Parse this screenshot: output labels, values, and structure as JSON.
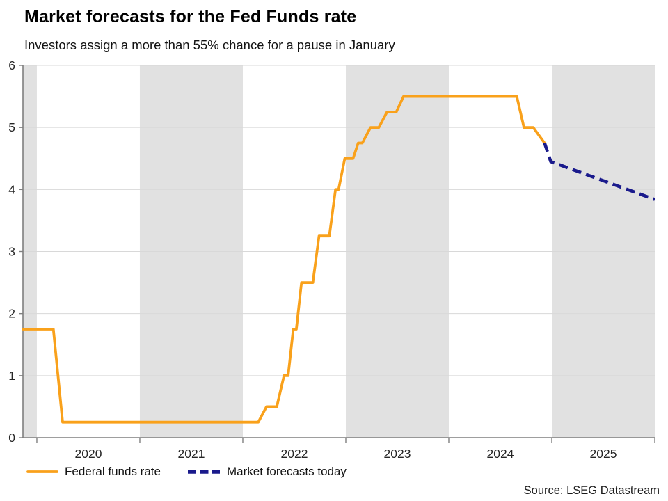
{
  "chart_data": {
    "type": "line",
    "title": "Market forecasts for the Fed Funds rate",
    "subtitle": "Investors assign a more than 55% chance for a pause in January",
    "source": "Source: LSEG Datastream",
    "grid": true,
    "legend_position": "bottom-left",
    "x_axis": {
      "range": [
        2019.865,
        2026.0
      ],
      "tick_positions": [
        2020,
        2021,
        2022,
        2023,
        2024,
        2025,
        2026
      ],
      "labels": [
        "2020",
        "2021",
        "2022",
        "2023",
        "2024",
        "2025"
      ]
    },
    "y_axis": {
      "range": [
        0,
        6
      ],
      "ticks": [
        0,
        1,
        2,
        3,
        4,
        5,
        6
      ]
    },
    "shaded_periods": [
      [
        2019.865,
        2020
      ],
      [
        2021,
        2022
      ],
      [
        2023,
        2024
      ],
      [
        2025,
        2026
      ]
    ],
    "colors": {
      "federal_funds": "#F9A11B",
      "forecast": "#1A1A8C",
      "band": "#E1E1E1",
      "grid": "#D8D8D8",
      "axis": "#7F7F7F",
      "tick_text": "#262626"
    },
    "series": [
      {
        "name": "Federal funds rate",
        "color": "#F9A11B",
        "style": "solid",
        "points": [
          [
            2019.865,
            1.75
          ],
          [
            2020.16,
            1.75
          ],
          [
            2020.25,
            0.25
          ],
          [
            2022.15,
            0.25
          ],
          [
            2022.23,
            0.5
          ],
          [
            2022.33,
            0.5
          ],
          [
            2022.4,
            1.0
          ],
          [
            2022.44,
            1.0
          ],
          [
            2022.49,
            1.75
          ],
          [
            2022.52,
            1.75
          ],
          [
            2022.57,
            2.5
          ],
          [
            2022.68,
            2.5
          ],
          [
            2022.74,
            3.25
          ],
          [
            2022.84,
            3.25
          ],
          [
            2022.9,
            4.0
          ],
          [
            2022.93,
            4.0
          ],
          [
            2022.99,
            4.5
          ],
          [
            2023.07,
            4.5
          ],
          [
            2023.12,
            4.75
          ],
          [
            2023.16,
            4.75
          ],
          [
            2023.24,
            5.0
          ],
          [
            2023.32,
            5.0
          ],
          [
            2023.4,
            5.25
          ],
          [
            2023.49,
            5.25
          ],
          [
            2023.56,
            5.5
          ],
          [
            2024.66,
            5.5
          ],
          [
            2024.73,
            5.0
          ],
          [
            2024.82,
            5.0
          ],
          [
            2024.93,
            4.75
          ]
        ]
      },
      {
        "name": "Market forecasts today",
        "color": "#1A1A8C",
        "style": "dashed",
        "points": [
          [
            2024.93,
            4.75
          ],
          [
            2024.99,
            4.45
          ],
          [
            2026.0,
            3.84
          ]
        ]
      }
    ]
  }
}
